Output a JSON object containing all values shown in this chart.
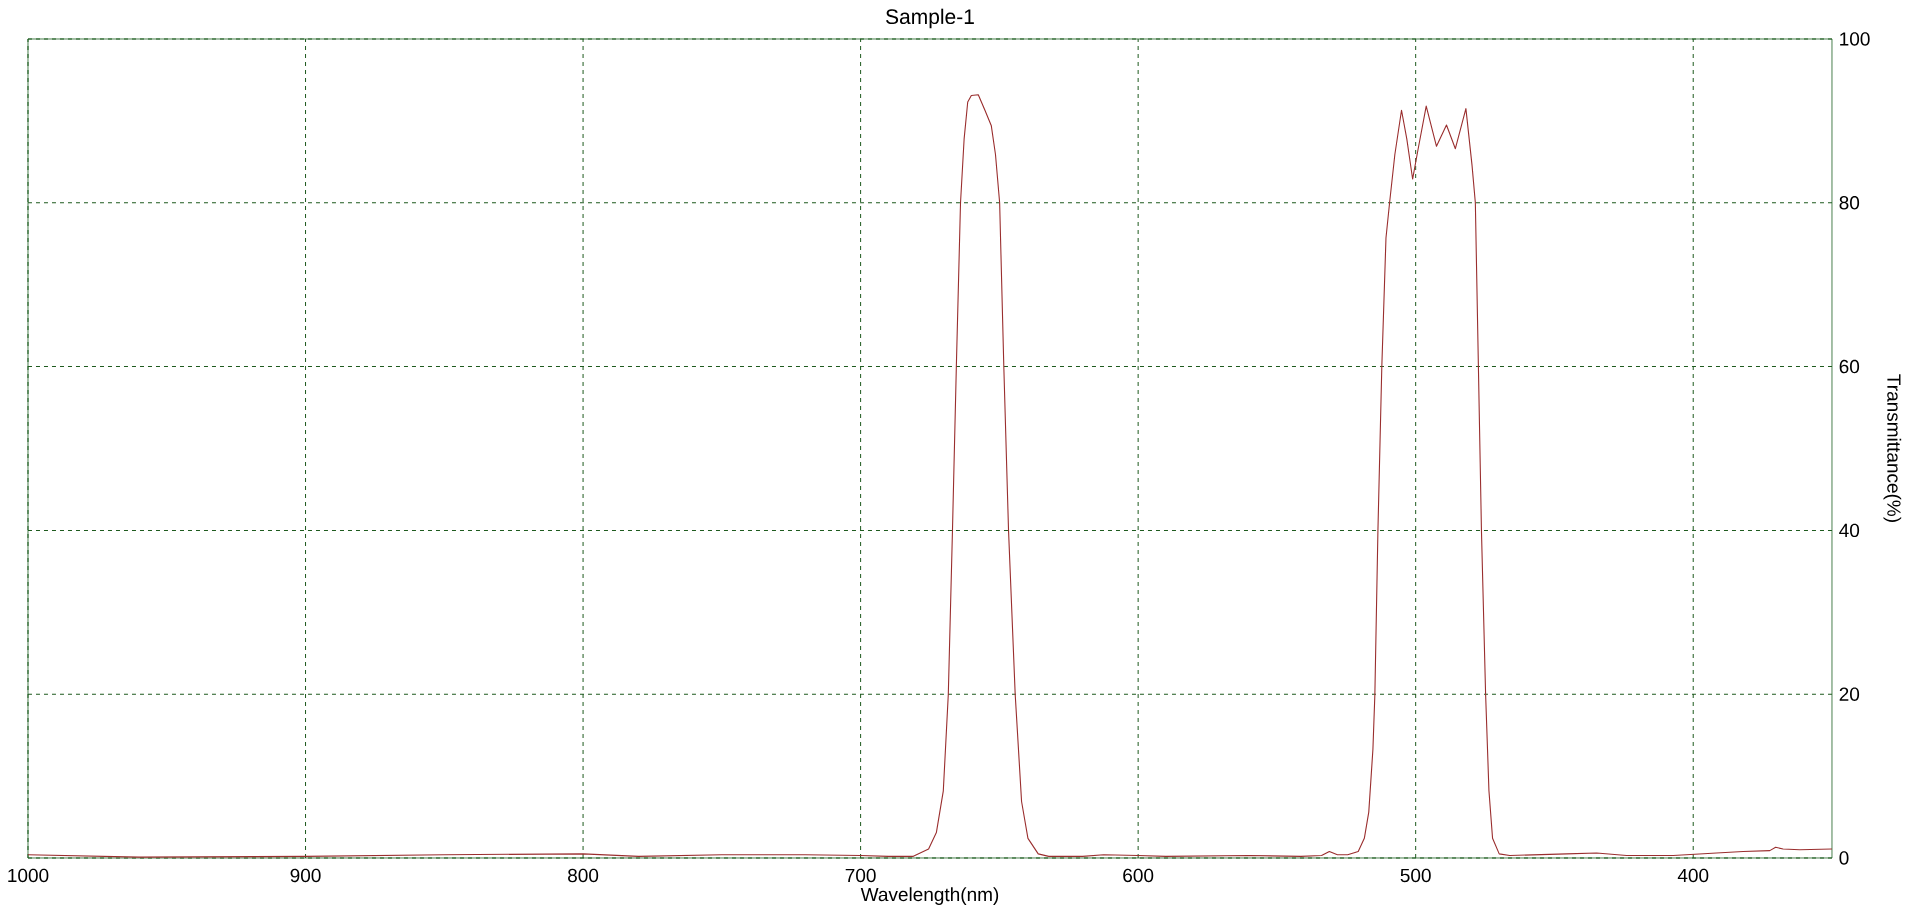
{
  "chart_data": {
    "type": "line",
    "title": "Sample-1",
    "xlabel": "Wavelength(nm)",
    "ylabel": "Transmittance(%)",
    "x": [
      350,
      361.6,
      367.6,
      370.3,
      372.4,
      382,
      391.6,
      407.2,
      424,
      434.8,
      445.6,
      466.1,
      469.9,
      472.3,
      473.6,
      474.8,
      476.3,
      477.4,
      478.5,
      479.7,
      481.9,
      485.7,
      488.9,
      492.5,
      496.2,
      499.1,
      501.1,
      503.2,
      505.1,
      507.5,
      509.4,
      510.7,
      512.2,
      513.6,
      514.7,
      515.4,
      516.9,
      518.5,
      520.7,
      524.5,
      528.2,
      531.1,
      533.9,
      541.4,
      560,
      590,
      600,
      612.4,
      620,
      632.2,
      636,
      639.7,
      642,
      644.3,
      646.7,
      648.4,
      649.9,
      651.4,
      652.9,
      655.2,
      657.6,
      660.1,
      661.4,
      662.7,
      664,
      665.5,
      666.9,
      668.4,
      670.2,
      672.7,
      675.5,
      681,
      690,
      700,
      720,
      750,
      780,
      800,
      850,
      900,
      960,
      1000
    ],
    "values": [
      1.1,
      1.0,
      1.1,
      1.3,
      0.9,
      0.8,
      0.6,
      0.3,
      0.3,
      0.6,
      0.5,
      0.3,
      0.5,
      2.4,
      8.2,
      20,
      40,
      60,
      80,
      84.6,
      91.5,
      86.6,
      89.5,
      86.9,
      91.8,
      86.6,
      82.9,
      87.8,
      91.3,
      85.9,
      80,
      75.7,
      60,
      40,
      20,
      13.3,
      5.6,
      2.4,
      0.8,
      0.4,
      0.4,
      0.8,
      0.3,
      0.2,
      0.3,
      0.2,
      0.3,
      0.4,
      0.2,
      0.2,
      0.5,
      2.4,
      6.9,
      20,
      40,
      60,
      80,
      85.9,
      89.4,
      91.3,
      93.2,
      93.1,
      92.3,
      87.8,
      80,
      60,
      40,
      20,
      8.2,
      3.1,
      1.1,
      0.2,
      0.2,
      0.3,
      0.4,
      0.4,
      0.2,
      0.5,
      0.4,
      0.2,
      0.1,
      0.4
    ],
    "color": "#9a2e2e",
    "xlim": [
      1000,
      350
    ],
    "xticks": [
      1000,
      900,
      800,
      700,
      600,
      500,
      400
    ],
    "ylim": [
      0,
      100
    ],
    "yticks": [
      0,
      20,
      40,
      60,
      80,
      100
    ],
    "grid": true
  }
}
